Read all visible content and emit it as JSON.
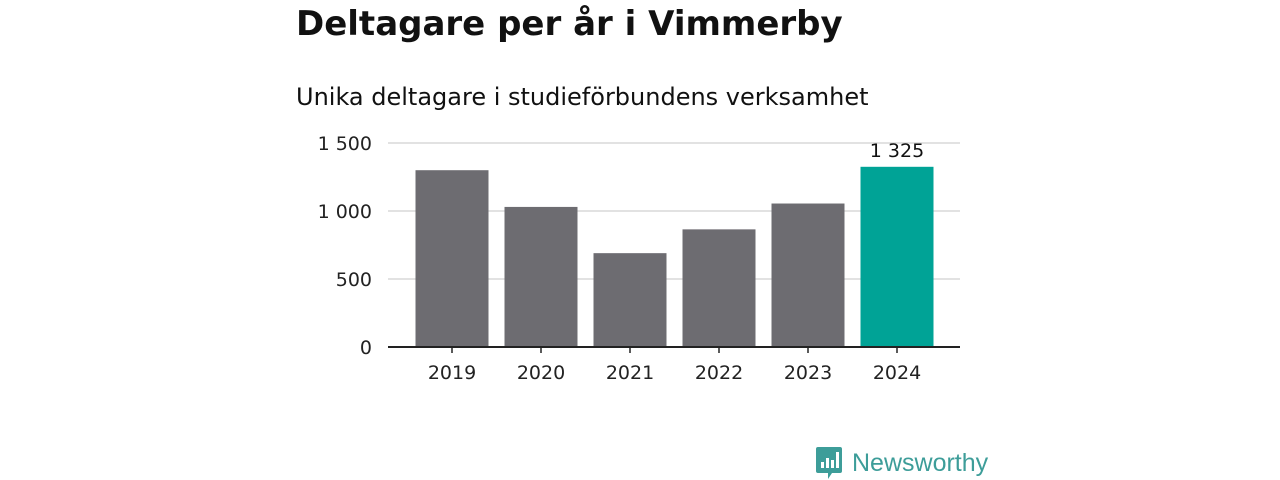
{
  "header": {
    "title": "Deltagare per år i Vimmerby",
    "subtitle": "Unika deltagare i studieförbundens verksamhet"
  },
  "brand": {
    "name": "Newsworthy",
    "color": "#3d9d99",
    "icon": "newsworthy-logo-icon"
  },
  "colors": {
    "bar": "#6d6c71",
    "highlight": "#00a396",
    "grid": "#d9d9d9",
    "axis": "#222222"
  },
  "chart_data": {
    "type": "bar",
    "categories": [
      "2019",
      "2020",
      "2021",
      "2022",
      "2023",
      "2024"
    ],
    "values": [
      1300,
      1030,
      690,
      865,
      1055,
      1325
    ],
    "highlight_index": 5,
    "data_labels": [
      {
        "index": 5,
        "text": "1 325"
      }
    ],
    "yticks": [
      {
        "value": 0,
        "label": "0"
      },
      {
        "value": 500,
        "label": "500"
      },
      {
        "value": 1000,
        "label": "1 000"
      },
      {
        "value": 1500,
        "label": "1 500"
      }
    ],
    "ylim": [
      0,
      1500
    ],
    "grid": true,
    "legend": "none",
    "title": "Deltagare per år i Vimmerby",
    "subtitle": "Unika deltagare i studieförbundens verksamhet",
    "xlabel": "",
    "ylabel": ""
  }
}
